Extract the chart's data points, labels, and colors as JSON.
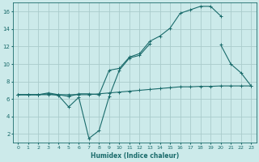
{
  "xlabel": "Humidex (Indice chaleur)",
  "bg_color": "#cceaea",
  "grid_color": "#aacccc",
  "line_color": "#1a6b6b",
  "xlim": [
    -0.5,
    23.5
  ],
  "ylim": [
    1.0,
    17.0
  ],
  "xticks": [
    0,
    1,
    2,
    3,
    4,
    5,
    6,
    7,
    8,
    9,
    10,
    11,
    12,
    13,
    14,
    15,
    16,
    17,
    18,
    19,
    20,
    21,
    22,
    23
  ],
  "yticks": [
    2,
    4,
    6,
    8,
    10,
    12,
    14,
    16
  ],
  "line1_x": [
    0,
    1,
    2,
    3,
    4,
    5,
    6,
    7,
    8,
    9,
    10,
    11,
    12,
    13,
    14,
    15,
    16,
    17,
    18,
    19,
    20,
    21,
    22,
    23
  ],
  "line1_y": [
    6.5,
    6.5,
    6.5,
    6.5,
    6.5,
    6.5,
    6.5,
    6.5,
    6.6,
    6.7,
    6.8,
    6.9,
    7.0,
    7.1,
    7.2,
    7.3,
    7.4,
    7.4,
    7.45,
    7.45,
    7.5,
    7.5,
    7.5,
    7.5
  ],
  "line2_x": [
    0,
    1,
    2,
    3,
    4,
    5,
    6,
    7,
    8,
    9,
    10,
    11,
    12,
    13,
    14,
    15,
    16,
    17,
    18,
    19,
    20,
    21,
    22,
    23
  ],
  "line2_y": [
    6.5,
    6.5,
    6.5,
    6.7,
    6.5,
    6.3,
    6.6,
    6.6,
    6.5,
    9.3,
    9.5,
    10.8,
    11.2,
    12.6,
    13.2,
    14.1,
    15.8,
    16.2,
    16.6,
    16.6,
    15.5,
    null,
    null,
    null
  ],
  "line3_x": [
    0,
    1,
    2,
    3,
    4,
    5,
    6,
    7,
    8,
    9,
    10,
    11,
    12,
    13,
    14,
    15,
    16,
    17,
    18,
    19,
    20,
    21,
    22,
    23
  ],
  "line3_y": [
    6.5,
    6.5,
    6.5,
    6.6,
    6.4,
    5.1,
    6.2,
    1.5,
    2.4,
    6.3,
    9.3,
    10.7,
    11.0,
    12.3,
    null,
    null,
    null,
    null,
    null,
    null,
    12.2,
    10.0,
    9.0,
    7.5
  ]
}
